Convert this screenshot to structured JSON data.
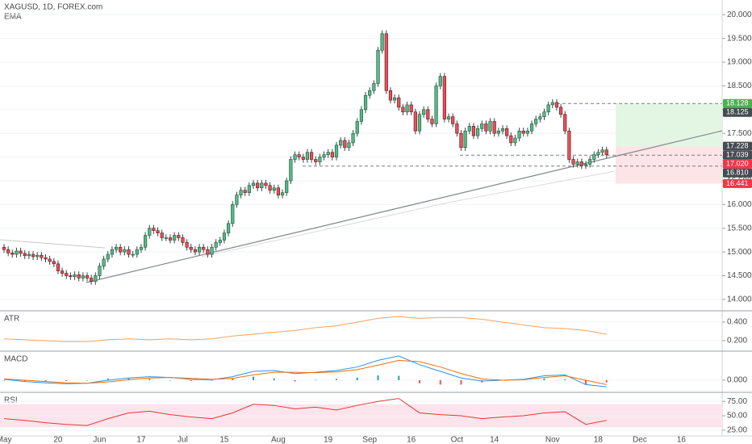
{
  "chart_data": [
    {
      "type": "candlestick",
      "title": "XAGUSD, 1D, FOREX.com",
      "overlay": "EMA",
      "categories": [
        "May",
        null,
        null,
        null,
        null,
        null,
        null,
        null,
        null,
        null,
        null,
        null,
        null,
        "20",
        null,
        null,
        null,
        null,
        null,
        null,
        null,
        null,
        null,
        "Jun",
        null,
        null,
        null,
        null,
        null,
        null,
        null,
        null,
        null,
        "17",
        null,
        null,
        null,
        null,
        null,
        null,
        null,
        null,
        null,
        "Jul",
        null,
        null,
        null,
        null,
        null,
        null,
        null,
        null,
        null,
        "15",
        null,
        null,
        null,
        null,
        null,
        null,
        null,
        null,
        null,
        null,
        null,
        null,
        "Aug",
        null,
        null,
        null,
        null,
        null,
        null,
        null,
        null,
        null,
        null,
        null,
        "19",
        null,
        null,
        null,
        null,
        null,
        null,
        null,
        null,
        null,
        "Sep",
        null,
        null,
        null,
        null,
        null,
        null,
        null,
        null,
        null,
        "16",
        null,
        null,
        null,
        null,
        null,
        null,
        null,
        null,
        null,
        null,
        "Oct",
        null,
        null,
        null,
        null,
        null,
        null,
        null,
        null,
        "14",
        null,
        null,
        null,
        null,
        null,
        null,
        null,
        null,
        null,
        null,
        null,
        null,
        null,
        "Nov",
        null,
        null,
        null,
        null,
        null,
        null,
        null,
        null,
        null,
        null,
        "18",
        null,
        null,
        null,
        null,
        null,
        null,
        null,
        null,
        null,
        "Dec",
        null,
        null,
        null,
        null,
        null,
        null,
        null,
        null,
        null,
        "16",
        null,
        null,
        null,
        null,
        null,
        null
      ],
      "open": [
        15.1,
        15.05,
        14.98,
        14.95,
        15.02,
        14.97,
        14.92,
        14.95,
        14.9,
        14.93,
        14.88,
        14.85,
        14.8,
        14.75,
        14.6,
        14.55,
        14.5,
        14.48,
        14.52,
        14.45,
        14.5,
        14.45,
        14.38,
        14.5,
        14.7,
        14.85,
        14.95,
        15.05,
        15.1,
        15.0,
        15.05,
        14.95,
        14.95,
        15.05,
        15.1,
        15.35,
        15.5,
        15.45,
        15.4,
        15.3,
        15.3,
        15.25,
        15.35,
        15.3,
        15.2,
        15.1,
        15.05,
        15.0,
        15.1,
        15.05,
        14.95,
        15.1,
        15.2,
        15.25,
        15.4,
        15.6,
        16.0,
        16.2,
        16.3,
        16.25,
        16.4,
        16.45,
        16.35,
        16.45,
        16.4,
        16.3,
        16.35,
        16.2,
        16.25,
        16.5,
        16.95,
        17.05,
        17.0,
        16.95,
        17.1,
        16.95,
        16.9,
        17.0,
        17.05,
        17.1,
        17.0,
        17.25,
        17.35,
        17.2,
        17.3,
        17.5,
        17.75,
        18.0,
        18.3,
        18.4,
        18.55,
        19.25,
        19.6,
        18.4,
        18.2,
        18.25,
        18.05,
        17.95,
        18.1,
        17.95,
        17.55,
        17.9,
        18.0,
        17.8,
        17.7,
        18.5,
        18.7,
        17.8,
        17.85,
        17.7,
        17.5,
        17.2,
        17.55,
        17.65,
        17.45,
        17.6,
        17.7,
        17.55,
        17.75,
        17.5,
        17.55,
        17.6,
        17.45,
        17.3,
        17.4,
        17.55,
        17.5,
        17.55,
        17.7,
        17.8,
        17.85,
        17.95,
        18.1,
        18.15,
        18.05,
        17.9,
        17.55,
        16.95,
        16.85,
        16.9,
        16.82,
        16.85,
        16.95,
        17.05,
        17.1,
        17.15,
        null,
        null,
        null,
        null,
        null,
        null,
        null,
        null,
        null,
        null,
        null,
        null,
        null,
        null,
        null,
        null,
        null,
        null,
        null,
        null,
        null,
        null,
        null,
        null
      ],
      "high": [
        15.17,
        15.12,
        15.05,
        15.09,
        15.09,
        15.04,
        15.02,
        15.02,
        15.0,
        15.0,
        14.95,
        14.92,
        14.87,
        14.82,
        14.67,
        14.62,
        14.57,
        14.59,
        14.59,
        14.57,
        14.57,
        14.52,
        14.57,
        14.77,
        14.92,
        15.02,
        15.12,
        15.17,
        15.17,
        15.12,
        15.12,
        15.02,
        15.12,
        15.17,
        15.42,
        15.57,
        15.57,
        15.52,
        15.47,
        15.37,
        15.37,
        15.42,
        15.42,
        15.37,
        15.27,
        15.17,
        15.12,
        15.17,
        15.17,
        15.12,
        15.17,
        15.27,
        15.32,
        15.47,
        15.67,
        16.07,
        16.27,
        16.37,
        16.37,
        16.47,
        16.52,
        16.52,
        16.52,
        16.52,
        16.47,
        16.42,
        16.42,
        16.32,
        16.57,
        17.02,
        17.12,
        17.12,
        17.07,
        17.17,
        17.17,
        17.02,
        17.07,
        17.12,
        17.17,
        17.17,
        17.32,
        17.42,
        17.42,
        17.37,
        17.57,
        17.82,
        18.07,
        18.37,
        18.47,
        18.62,
        19.32,
        19.67,
        19.67,
        18.47,
        18.32,
        18.32,
        18.12,
        18.17,
        18.17,
        18.02,
        17.97,
        18.07,
        18.07,
        17.87,
        18.57,
        18.77,
        18.77,
        17.92,
        17.92,
        17.77,
        17.57,
        17.62,
        17.72,
        17.72,
        17.67,
        17.77,
        17.77,
        17.82,
        17.82,
        17.62,
        17.67,
        17.67,
        17.52,
        17.47,
        17.62,
        17.62,
        17.62,
        17.77,
        17.87,
        17.92,
        18.02,
        18.17,
        18.22,
        18.22,
        18.12,
        17.97,
        17.62,
        17.02,
        16.97,
        16.97,
        16.92,
        17.02,
        17.12,
        17.17,
        17.22,
        17.22,
        null,
        null,
        null,
        null,
        null,
        null,
        null,
        null,
        null,
        null,
        null,
        null,
        null,
        null,
        null,
        null,
        null,
        null,
        null,
        null,
        null,
        null,
        null,
        null
      ],
      "low": [
        14.98,
        14.91,
        14.88,
        14.88,
        14.9,
        14.85,
        14.85,
        14.83,
        14.83,
        14.81,
        14.78,
        14.73,
        14.68,
        14.53,
        14.48,
        14.43,
        14.41,
        14.41,
        14.38,
        14.38,
        14.38,
        14.31,
        14.31,
        14.43,
        14.63,
        14.78,
        14.88,
        14.98,
        14.93,
        14.93,
        14.88,
        14.88,
        14.88,
        14.98,
        15.03,
        15.28,
        15.38,
        15.33,
        15.23,
        15.23,
        15.18,
        15.18,
        15.23,
        15.13,
        15.03,
        14.98,
        14.93,
        14.93,
        14.98,
        14.88,
        14.88,
        15.03,
        15.13,
        15.18,
        15.33,
        15.53,
        15.93,
        16.13,
        16.18,
        16.18,
        16.33,
        16.28,
        16.28,
        16.33,
        16.23,
        16.23,
        16.13,
        16.13,
        16.18,
        16.43,
        16.88,
        16.93,
        16.88,
        16.88,
        16.88,
        16.83,
        16.83,
        16.93,
        16.98,
        16.93,
        16.93,
        17.18,
        17.13,
        17.13,
        17.23,
        17.43,
        17.68,
        17.93,
        18.23,
        18.33,
        18.48,
        19.18,
        18.33,
        18.13,
        18.13,
        17.98,
        17.88,
        17.88,
        17.88,
        17.48,
        17.48,
        17.83,
        17.73,
        17.63,
        17.63,
        18.43,
        17.73,
        17.73,
        17.63,
        17.43,
        17.13,
        17.13,
        17.48,
        17.38,
        17.38,
        17.53,
        17.48,
        17.48,
        17.43,
        17.43,
        17.48,
        17.38,
        17.23,
        17.23,
        17.33,
        17.43,
        17.43,
        17.48,
        17.63,
        17.73,
        17.78,
        17.88,
        18.03,
        17.98,
        17.83,
        17.48,
        16.88,
        16.78,
        16.78,
        16.75,
        16.75,
        16.78,
        16.88,
        16.98,
        17.03,
        16.98,
        null,
        null,
        null,
        null,
        null,
        null,
        null,
        null,
        null,
        null,
        null,
        null,
        null,
        null,
        null,
        null,
        null,
        null,
        null,
        null,
        null,
        null,
        null,
        null
      ],
      "close": [
        15.05,
        14.98,
        14.95,
        15.02,
        14.97,
        14.92,
        14.95,
        14.9,
        14.93,
        14.88,
        14.85,
        14.8,
        14.75,
        14.6,
        14.55,
        14.5,
        14.48,
        14.52,
        14.45,
        14.5,
        14.45,
        14.38,
        14.5,
        14.7,
        14.85,
        14.95,
        15.05,
        15.1,
        15.0,
        15.05,
        14.95,
        14.95,
        15.05,
        15.1,
        15.35,
        15.5,
        15.45,
        15.4,
        15.3,
        15.3,
        15.25,
        15.35,
        15.3,
        15.2,
        15.1,
        15.05,
        15.0,
        15.1,
        15.05,
        14.95,
        15.1,
        15.2,
        15.25,
        15.4,
        15.6,
        16.0,
        16.2,
        16.3,
        16.25,
        16.4,
        16.45,
        16.35,
        16.45,
        16.4,
        16.3,
        16.35,
        16.2,
        16.25,
        16.5,
        16.95,
        17.05,
        17.0,
        16.95,
        17.1,
        16.95,
        16.9,
        17.0,
        17.05,
        17.1,
        17.0,
        17.25,
        17.35,
        17.2,
        17.3,
        17.5,
        17.75,
        18.0,
        18.3,
        18.4,
        18.55,
        19.25,
        19.6,
        18.4,
        18.2,
        18.25,
        18.05,
        17.95,
        18.1,
        17.95,
        17.55,
        17.9,
        18.0,
        17.8,
        17.7,
        18.5,
        18.7,
        17.8,
        17.85,
        17.7,
        17.5,
        17.2,
        17.55,
        17.65,
        17.45,
        17.6,
        17.7,
        17.55,
        17.75,
        17.5,
        17.55,
        17.6,
        17.45,
        17.3,
        17.4,
        17.55,
        17.5,
        17.55,
        17.7,
        17.8,
        17.85,
        17.95,
        18.1,
        18.15,
        18.05,
        17.9,
        17.55,
        16.95,
        16.85,
        16.9,
        16.82,
        16.85,
        16.95,
        17.05,
        17.1,
        17.15,
        17.05,
        null,
        null,
        null,
        null,
        null,
        null,
        null,
        null,
        null,
        null,
        null,
        null,
        null,
        null,
        null,
        null,
        null,
        null,
        null,
        null,
        null,
        null,
        null,
        null
      ],
      "up_color": "#53b987",
      "down_color": "#eb4d5c",
      "ylim": [
        13.76,
        20.31
      ],
      "yticks": [
        {
          "value": 14,
          "label": "14.000"
        },
        {
          "value": 14.5,
          "label": "14.500"
        },
        {
          "value": 15,
          "label": "15.000"
        },
        {
          "value": 15.5,
          "label": "15.500"
        },
        {
          "value": 16,
          "label": "16.000"
        },
        {
          "value": 16.5,
          "label": "16.500"
        },
        {
          "value": 17,
          "label": "17.000"
        },
        {
          "value": 17.5,
          "label": "17.500"
        },
        {
          "value": 18,
          "label": "18.000"
        },
        {
          "value": 18.5,
          "label": "18.500"
        },
        {
          "value": 19,
          "label": "19.000"
        },
        {
          "value": 19.5,
          "label": "19.500"
        },
        {
          "value": 20,
          "label": "20.000"
        }
      ],
      "price_tags": [
        {
          "value": 18.128,
          "label": "18.128",
          "color": "#4caf50"
        },
        {
          "value": 18.125,
          "label": "18.125",
          "color": "#444b52"
        },
        {
          "value": 17.228,
          "label": "17.228",
          "color": "#444b52"
        },
        {
          "value": 17.039,
          "label": "17.039",
          "color": "#444b52"
        },
        {
          "value": 17.02,
          "label": "17.020",
          "color": "#f23645"
        },
        {
          "value": 16.81,
          "label": "16.810",
          "color": "#444b52"
        },
        {
          "value": 16.441,
          "label": "16.441",
          "color": "#f23645"
        }
      ]
    },
    {
      "type": "line",
      "title": "ATR",
      "color": "#f7a35c",
      "values": [
        0.22,
        0.21,
        0.2,
        0.19,
        0.19,
        0.21,
        0.22,
        0.21,
        0.22,
        0.21,
        0.22,
        0.25,
        0.27,
        0.29,
        0.31,
        0.34,
        0.36,
        0.4,
        0.44,
        0.46,
        0.44,
        0.45,
        0.45,
        0.43,
        0.4,
        0.37,
        0.34,
        0.33,
        0.31,
        0.27
      ],
      "ylim": [
        0.087,
        0.513
      ],
      "yticks": [
        {
          "value": 0.2,
          "label": "0.200"
        },
        {
          "value": 0.4,
          "label": "0.400"
        }
      ]
    },
    {
      "type": "macd",
      "title": "MACD",
      "series": [
        {
          "color": "#2196f3",
          "values": [
            0.02,
            -0.03,
            -0.06,
            -0.08,
            -0.07,
            0.0,
            0.05,
            0.08,
            0.06,
            0.02,
            0.01,
            0.08,
            0.2,
            0.22,
            0.15,
            0.18,
            0.22,
            0.3,
            0.45,
            0.55,
            0.35,
            0.2,
            0.05,
            -0.02,
            0.0,
            0.02,
            0.1,
            0.12,
            -0.1,
            -0.15
          ]
        },
        {
          "color": "#ff6d00",
          "values": [
            0.03,
            0.0,
            -0.03,
            -0.06,
            -0.07,
            -0.04,
            0.01,
            0.05,
            0.06,
            0.04,
            0.02,
            0.04,
            0.12,
            0.18,
            0.18,
            0.17,
            0.19,
            0.24,
            0.34,
            0.45,
            0.42,
            0.3,
            0.15,
            0.03,
            0.0,
            0.01,
            0.06,
            0.1,
            0.0,
            -0.1
          ]
        }
      ],
      "histogram": {
        "up_color": "#26a69a",
        "down_color": "#ef5350",
        "values": [
          -0.01,
          -0.03,
          -0.03,
          -0.02,
          0.0,
          0.04,
          0.04,
          0.03,
          0.0,
          -0.02,
          -0.01,
          0.04,
          0.08,
          0.04,
          -0.03,
          0.01,
          0.03,
          0.06,
          0.11,
          0.1,
          -0.07,
          -0.1,
          -0.1,
          -0.05,
          0.0,
          0.01,
          0.04,
          0.02,
          -0.1,
          -0.05
        ]
      },
      "ylim": [
        -0.257,
        0.64
      ],
      "yticks": [
        {
          "value": 0,
          "label": "0.000"
        }
      ]
    },
    {
      "type": "line",
      "title": "RSI",
      "color": "#e53935",
      "band": [
        30,
        70
      ],
      "band_color": "#fce4ec",
      "values": [
        45,
        42,
        38,
        35,
        33,
        45,
        55,
        58,
        52,
        48,
        45,
        55,
        70,
        68,
        62,
        65,
        60,
        68,
        75,
        80,
        55,
        52,
        50,
        45,
        48,
        50,
        55,
        57,
        35,
        42
      ],
      "ylim": [
        15,
        89.3
      ],
      "yticks": [
        {
          "value": 25,
          "label": "25.00"
        },
        {
          "value": 50,
          "label": "50.00"
        },
        {
          "value": 75,
          "label": "75.00"
        }
      ]
    }
  ]
}
